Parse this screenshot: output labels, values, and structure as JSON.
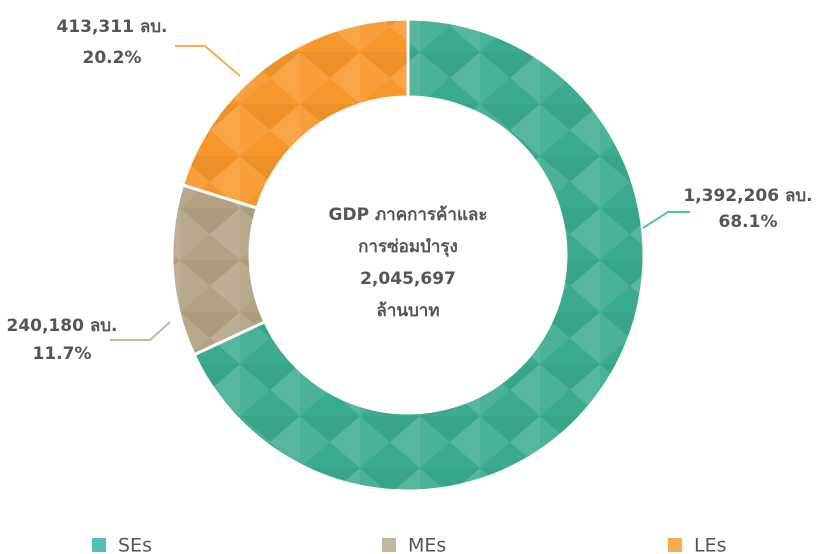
{
  "chart_data": {
    "type": "donut",
    "categories": [
      "SEs",
      "MEs",
      "LEs"
    ],
    "values": [
      1392206,
      240180,
      413311
    ],
    "value_labels": [
      "1,392,206 ลบ.",
      "240,180 ลบ.",
      "413,311 ลบ."
    ],
    "percents": [
      68.1,
      11.7,
      20.2
    ],
    "percent_labels": [
      "68.1%",
      "11.7%",
      "20.2%"
    ],
    "colors": [
      "#3aab8e",
      "#b2a184",
      "#f7962a"
    ],
    "legend_colors": [
      "#4fc0b4",
      "#c4b69c",
      "#f9ab4f"
    ],
    "center_text": [
      "GDP ภาคการค้าและ",
      "การซ่อมบำรุง",
      "2,045,697",
      "ล้านบาท"
    ],
    "legend": "bottom"
  }
}
